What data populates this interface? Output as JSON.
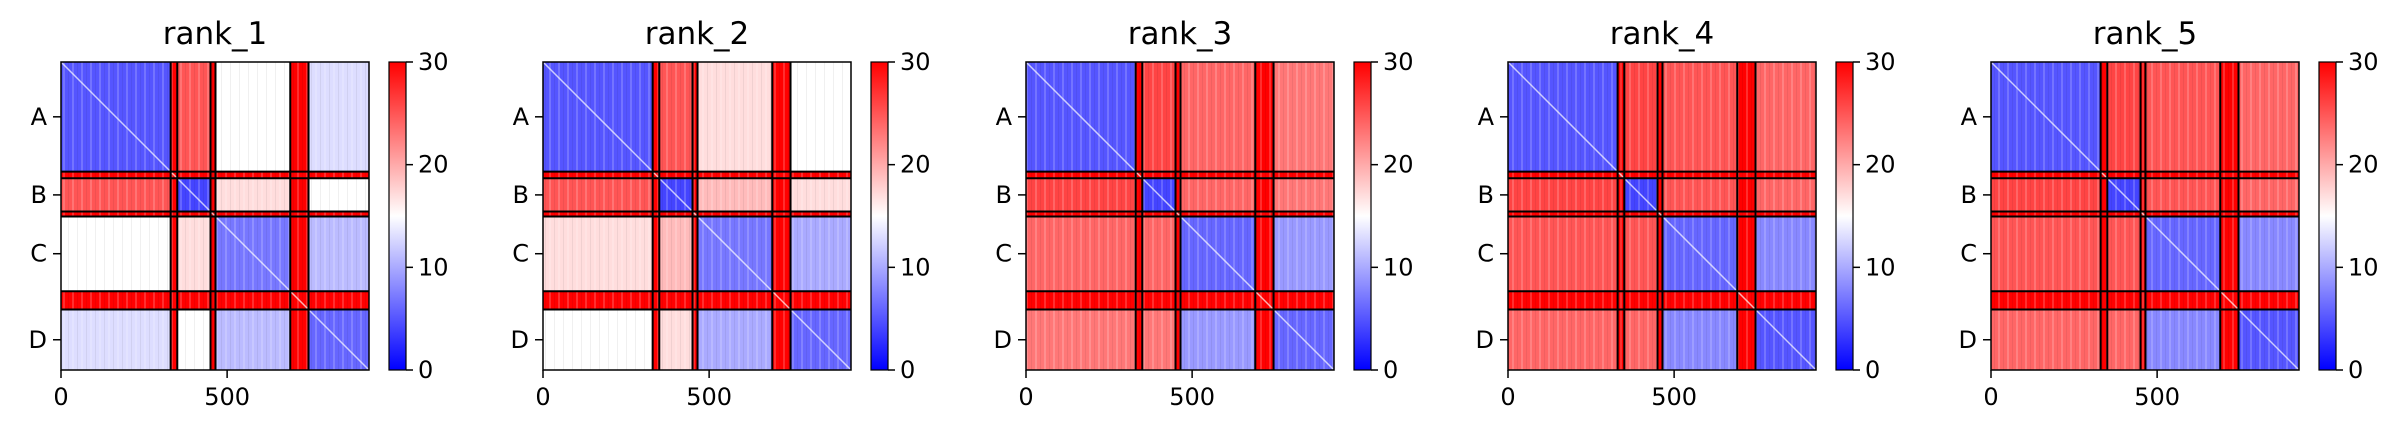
{
  "chart_data": [
    {
      "type": "heatmap",
      "title": "rank_1",
      "xticks": [
        "0",
        "500"
      ],
      "yticks": [
        "A",
        "B",
        "C",
        "D"
      ],
      "colorbar": {
        "ticks": [
          "0",
          "10",
          "20",
          "30"
        ],
        "range": [
          0,
          30
        ],
        "colormap": [
          "#0000ff",
          "#ffffff",
          "#ff0000"
        ]
      },
      "blocks": {
        "AA": 5,
        "AB": 25,
        "AC": 15,
        "AD": 13,
        "BB": 4,
        "BC": 17,
        "BD": 15,
        "CC": 7,
        "CD": 11,
        "DD": 6
      }
    },
    {
      "type": "heatmap",
      "title": "rank_2",
      "xticks": [
        "0",
        "500"
      ],
      "yticks": [
        "A",
        "B",
        "C",
        "D"
      ],
      "colorbar": {
        "ticks": [
          "0",
          "10",
          "20",
          "30"
        ],
        "range": [
          0,
          30
        ],
        "colormap": [
          "#0000ff",
          "#ffffff",
          "#ff0000"
        ]
      },
      "blocks": {
        "AA": 5,
        "AB": 25,
        "AC": 17,
        "AD": 15,
        "BB": 4,
        "BC": 19,
        "BD": 17,
        "CC": 7,
        "CD": 10,
        "DD": 6
      }
    },
    {
      "type": "heatmap",
      "title": "rank_3",
      "xticks": [
        "0",
        "500"
      ],
      "yticks": [
        "A",
        "B",
        "C",
        "D"
      ],
      "colorbar": {
        "ticks": [
          "0",
          "10",
          "20",
          "30"
        ],
        "range": [
          0,
          30
        ],
        "colormap": [
          "#0000ff",
          "#ffffff",
          "#ff0000"
        ]
      },
      "blocks": {
        "AA": 5,
        "AB": 26,
        "AC": 24,
        "AD": 23,
        "BB": 4,
        "BC": 24,
        "BD": 23,
        "CC": 6,
        "CD": 9,
        "DD": 6
      }
    },
    {
      "type": "heatmap",
      "title": "rank_4",
      "xticks": [
        "0",
        "500"
      ],
      "yticks": [
        "A",
        "B",
        "C",
        "D"
      ],
      "colorbar": {
        "ticks": [
          "0",
          "10",
          "20",
          "30"
        ],
        "range": [
          0,
          30
        ],
        "colormap": [
          "#0000ff",
          "#ffffff",
          "#ff0000"
        ]
      },
      "blocks": {
        "AA": 5,
        "AB": 26,
        "AC": 25,
        "AD": 24,
        "BB": 4,
        "BC": 25,
        "BD": 24,
        "CC": 6,
        "CD": 8,
        "DD": 5
      }
    },
    {
      "type": "heatmap",
      "title": "rank_5",
      "xticks": [
        "0",
        "500"
      ],
      "yticks": [
        "A",
        "B",
        "C",
        "D"
      ],
      "colorbar": {
        "ticks": [
          "0",
          "10",
          "20",
          "30"
        ],
        "range": [
          0,
          30
        ],
        "colormap": [
          "#0000ff",
          "#ffffff",
          "#ff0000"
        ]
      },
      "blocks": {
        "AA": 5,
        "AB": 26,
        "AC": 25,
        "AD": 24,
        "BB": 4,
        "BC": 25,
        "BD": 24,
        "CC": 6,
        "CD": 8,
        "DD": 5
      }
    }
  ]
}
